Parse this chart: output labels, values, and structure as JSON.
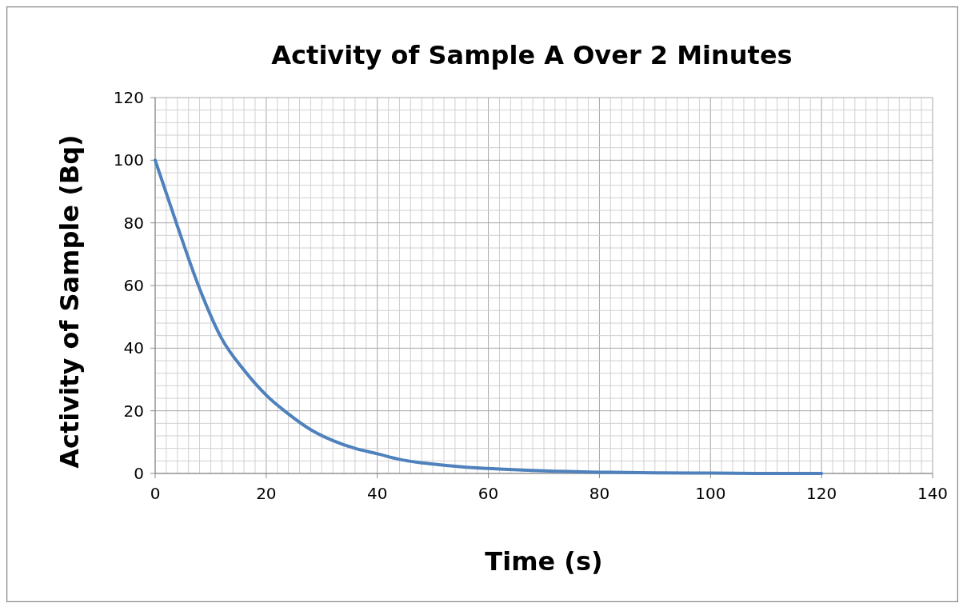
{
  "chart_data": {
    "type": "line",
    "title": "Activity of Sample A Over 2 Minutes",
    "xlabel": "Time (s)",
    "ylabel": "Activity of Sample (Bq)",
    "x": [
      0,
      4,
      8,
      12,
      16,
      20,
      24,
      28,
      32,
      36,
      40,
      44,
      50,
      56,
      60,
      70,
      80,
      90,
      100,
      110,
      120
    ],
    "series": [
      {
        "color": "#4f81bd",
        "values": [
          100,
          79,
          59,
          43,
          33,
          25,
          19,
          14,
          10.5,
          8,
          6.3,
          4.5,
          3,
          2,
          1.6,
          0.8,
          0.4,
          0.2,
          0.1,
          0,
          0
        ]
      }
    ],
    "xlim": [
      0,
      140
    ],
    "xticks": [
      0,
      20,
      40,
      60,
      80,
      100,
      120,
      140
    ],
    "ylim": [
      0,
      120
    ],
    "yticks": [
      0,
      20,
      40,
      60,
      80,
      100,
      120
    ],
    "grid": true,
    "marker": "none",
    "line_style": "solid"
  }
}
